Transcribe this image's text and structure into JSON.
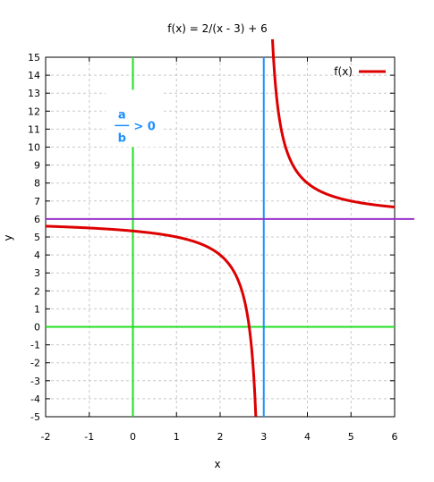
{
  "chart_data": {
    "type": "line",
    "title": "f(x) = 2/(x - 3) + 6",
    "xlabel": "x",
    "ylabel": "y",
    "xlim": [
      -2,
      6
    ],
    "ylim": [
      -5,
      15
    ],
    "x_ticks": [
      -2,
      -1,
      0,
      1,
      2,
      3,
      4,
      5,
      6
    ],
    "y_ticks": [
      -5,
      -4,
      -3,
      -2,
      -1,
      0,
      1,
      2,
      3,
      4,
      5,
      6,
      7,
      8,
      9,
      10,
      11,
      12,
      13,
      14,
      15
    ],
    "grid": true,
    "legend_position": "top-right",
    "series": [
      {
        "name": "f(x)",
        "color": "#dd0000",
        "function": "2/(x - 3) + 6",
        "branches": [
          {
            "x_start": -2,
            "x_end": 2.818
          },
          {
            "x_start": 3.2,
            "x_end": 6
          }
        ]
      }
    ],
    "reference_lines": [
      {
        "orientation": "vertical",
        "value": 0,
        "color": "#22dd22"
      },
      {
        "orientation": "horizontal",
        "value": 0,
        "color": "#22dd22"
      },
      {
        "orientation": "vertical",
        "value": 3,
        "color": "#1e90ff"
      },
      {
        "orientation": "horizontal",
        "value": 6,
        "color": "#9933cc"
      }
    ],
    "annotation": {
      "numerator": "a",
      "denominator": "b",
      "relation": "> 0",
      "at_x": -0.25,
      "at_y": 11.2,
      "color": "#1e90ff"
    }
  }
}
